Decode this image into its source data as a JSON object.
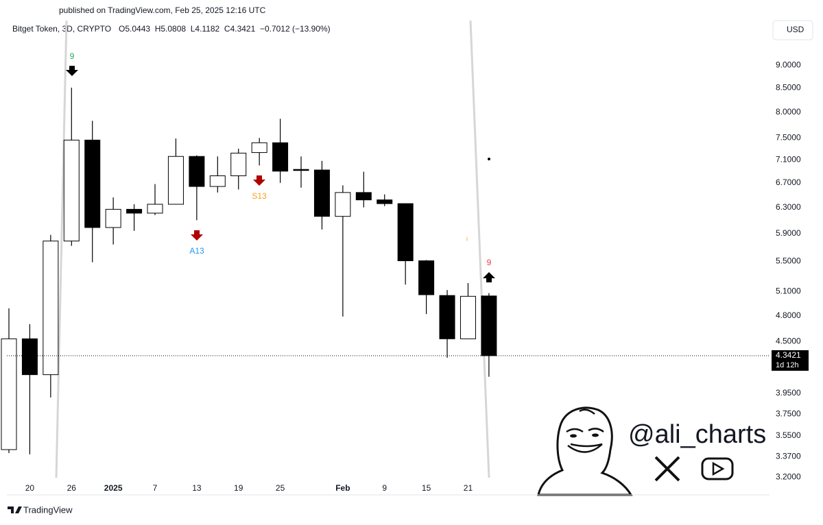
{
  "header": {
    "published": "published on TradingView.com, Feb 25, 2025 12:16 UTC"
  },
  "chart_data": {
    "type": "candlestick",
    "symbol": "Bitget Token, 3D, CRYPTO",
    "ohlc_text": "O5.0443  H5.0808  L4.1182  C4.3421  −0.7012 (−13.90%)",
    "currency": "USD",
    "categories": [
      null,
      "20",
      null,
      "26",
      null,
      "2025",
      null,
      "7",
      null,
      "13",
      null,
      "19",
      null,
      "25",
      null,
      null,
      "Feb",
      null,
      "9",
      null,
      "15",
      null,
      "21",
      null
    ],
    "open": [
      3.43,
      4.53,
      4.14,
      5.79,
      7.46,
      5.99,
      6.27,
      6.21,
      6.35,
      7.16,
      6.64,
      6.82,
      7.23,
      7.41,
      6.93,
      6.92,
      6.16,
      6.54,
      6.42,
      6.36,
      5.51,
      5.05,
      4.53,
      5.0443
    ],
    "high": [
      4.89,
      4.7,
      5.88,
      8.51,
      7.83,
      6.46,
      6.35,
      6.68,
      7.49,
      7.18,
      7.16,
      7.3,
      7.5,
      7.87,
      7.16,
      7.08,
      6.66,
      6.89,
      6.51,
      6.36,
      5.52,
      5.12,
      5.21,
      5.0808
    ],
    "low": [
      3.4,
      3.39,
      3.91,
      5.72,
      5.49,
      5.74,
      5.94,
      6.18,
      6.35,
      6.1,
      6.54,
      6.59,
      7.0,
      6.7,
      6.62,
      5.96,
      4.79,
      6.3,
      6.32,
      5.19,
      4.82,
      4.32,
      4.53,
      4.1182
    ],
    "close": [
      4.53,
      4.14,
      5.79,
      7.46,
      5.99,
      6.27,
      6.21,
      6.35,
      7.16,
      6.64,
      6.82,
      7.22,
      7.41,
      6.9,
      6.92,
      6.16,
      6.54,
      6.42,
      6.36,
      5.51,
      5.06,
      4.53,
      5.04,
      4.3421
    ],
    "up_color": "#ffffff",
    "down_color": "#000000",
    "log_scale": true,
    "ylim": [
      3.18,
      10.07
    ],
    "yticks": [
      {
        "value": 3.2,
        "label": "3.2000"
      },
      {
        "value": 3.37,
        "label": "3.3700"
      },
      {
        "value": 3.55,
        "label": "3.5500"
      },
      {
        "value": 3.75,
        "label": "3.7500"
      },
      {
        "value": 3.95,
        "label": "3.9500"
      },
      {
        "value": 4.5,
        "label": "4.5000"
      },
      {
        "value": 4.8,
        "label": "4.8000"
      },
      {
        "value": 5.1,
        "label": "5.1000"
      },
      {
        "value": 5.5,
        "label": "5.5000"
      },
      {
        "value": 5.9,
        "label": "5.9000"
      },
      {
        "value": 6.3,
        "label": "6.3000"
      },
      {
        "value": 6.7,
        "label": "6.7000"
      },
      {
        "value": 7.1,
        "label": "7.1000"
      },
      {
        "value": 7.5,
        "label": "7.5000"
      },
      {
        "value": 8,
        "label": "8.0000"
      },
      {
        "value": 8.5,
        "label": "8.5000"
      },
      {
        "value": 9,
        "label": "9.0000"
      }
    ],
    "last_price": {
      "value": 4.3421,
      "label": "4.3421"
    },
    "countdown": "1d 12h",
    "annotations": [
      {
        "text": "9",
        "color": "#22ab55"
      },
      {
        "text": "A13",
        "color": "#2196f3"
      },
      {
        "text": "S13",
        "color": "#f7a21b"
      },
      {
        "text": "9",
        "color": "#f23645"
      },
      {
        "text": "i",
        "color": "#f7a21b"
      }
    ]
  },
  "watermark": {
    "handle": "@ali_charts"
  },
  "footer": {
    "brand": "TradingView"
  }
}
